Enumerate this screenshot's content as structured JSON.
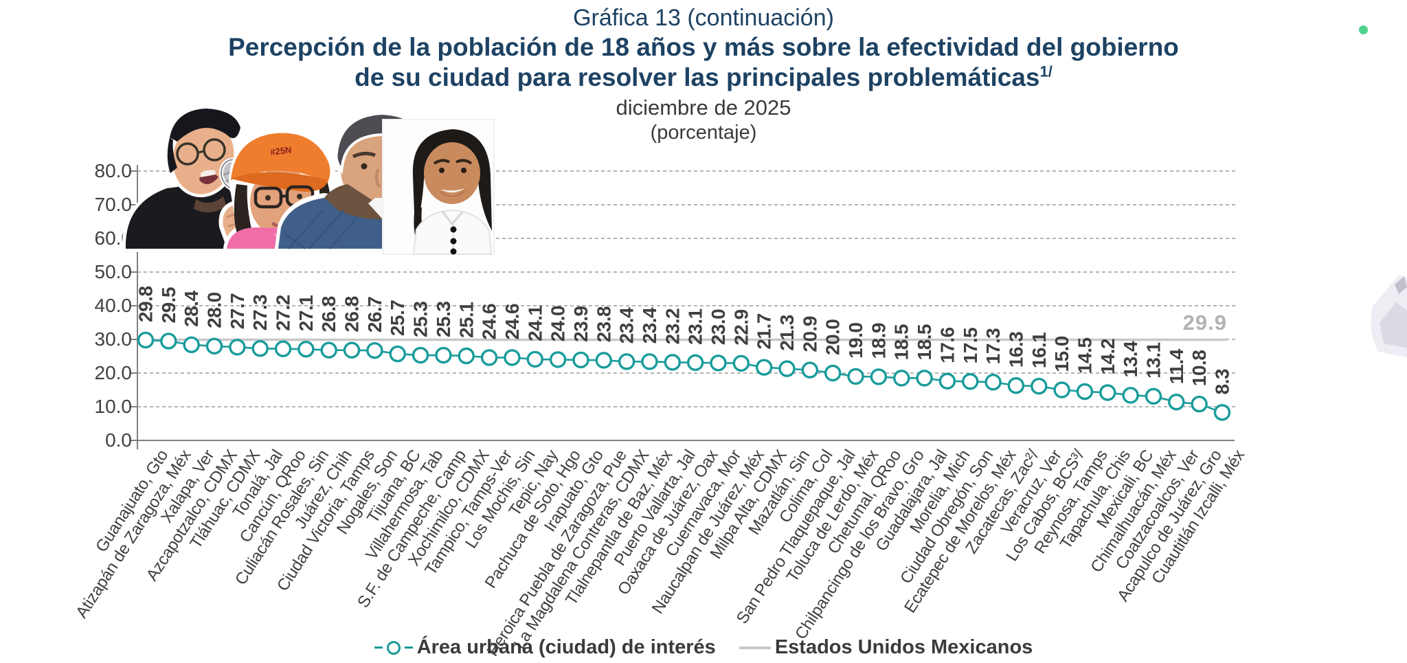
{
  "header": {
    "line1": "Gráfica 13 (continuación)",
    "line2": "Percepción de la población de 18 años y más sobre la efectividad del gobierno",
    "line3": "de su ciudad para resolver las principales problemáticas",
    "line3_superscript": "1/",
    "line4": "diciembre de 2025",
    "line5": "(porcentaje)"
  },
  "chart_data": {
    "type": "line",
    "title": "Percepción de la población de 18 años y más sobre la efectividad del gobierno de su ciudad para resolver las principales problemáticas, diciembre de 2025 (porcentaje)",
    "xlabel": "",
    "ylabel": "",
    "ylim": [
      0,
      80
    ],
    "yticks": [
      0,
      10,
      20,
      30,
      40,
      50,
      60,
      70,
      80
    ],
    "grid": "dashed horizontal",
    "legend_position": "bottom",
    "categories": [
      "Guanajuato, Gto",
      "Atizapán de Zaragoza, Méx",
      "Xalapa, Ver",
      "Azcapotzalco, CDMX",
      "Tláhuac, CDMX",
      "Tonalá, Jal",
      "Cancún, QRoo",
      "Culiacán Rosales, Sin",
      "Juárez, Chih",
      "Ciudad Victoria, Tamps",
      "Nogales, Son",
      "Tijuana, BC",
      "Villahermosa, Tab",
      "S.F. de Campeche, Camp",
      "Xochimilco, CDMX",
      "Tampico, Tamps-Ver",
      "Los Mochis, Sin",
      "Tepic, Nay",
      "Pachuca de Soto, Hgo",
      "Irapuato, Gto",
      "Heroica Puebla de Zaragoza, Pue",
      "La Magdalena Contreras, CDMX",
      "Tlalnepantla de Baz, Méx",
      "Puerto Vallarta, Jal",
      "Oaxaca de Juárez, Oax",
      "Cuernavaca, Mor",
      "Naucalpan de Juárez, Méx",
      "Milpa Alta, CDMX",
      "Mazatlán, Sin",
      "Colima, Col",
      "San Pedro Tlaquepaque, Jal",
      "Toluca de Lerdo, Méx",
      "Chetumal, QRoo",
      "Chilpancingo de los Bravo, Gro",
      "Guadalajara, Jal",
      "Morelia, Mich",
      "Ciudad Obregón, Son",
      "Ecatepec de Morelos, Méx",
      "Zacatecas, Zac²/",
      "Veracruz, Ver",
      "Los Cabos, BCS³/",
      "Reynosa, Tamps",
      "Tapachula, Chis",
      "Mexicali, BC",
      "Chimalhuacán, Méx",
      "Coatzacoalcos, Ver",
      "Acapulco de Juárez, Gro",
      "Cuautitlán Izcalli, Méx"
    ],
    "series": [
      {
        "name": "Área urbana (ciudad) de interés",
        "values": [
          29.8,
          29.5,
          28.4,
          28.0,
          27.7,
          27.3,
          27.2,
          27.1,
          26.8,
          26.8,
          26.7,
          25.7,
          25.3,
          25.3,
          25.1,
          24.6,
          24.6,
          24.1,
          24.0,
          23.9,
          23.8,
          23.4,
          23.4,
          23.2,
          23.1,
          23.0,
          22.9,
          21.7,
          21.3,
          20.9,
          20.0,
          19.0,
          18.9,
          18.5,
          18.5,
          17.6,
          17.5,
          17.3,
          16.3,
          16.1,
          15.0,
          14.5,
          14.2,
          13.4,
          13.1,
          11.4,
          10.8,
          8.3
        ]
      }
    ],
    "national_reference": {
      "name": "Estados Unidos Mexicanos",
      "value": 29.9,
      "label": "29.9"
    },
    "colors": {
      "series": "#199b9b",
      "national_line": "#c7c7c7",
      "national_label": "#b2b2b2",
      "title_navy": "#1d4263",
      "grid": "#9a9a9a"
    }
  },
  "legend": {
    "items": [
      {
        "label": "Área urbana (ciudad) de interés",
        "marker": "teal-open-circle-line"
      },
      {
        "label": "Estados Unidos Mexicanos",
        "marker": "gray-line"
      }
    ]
  },
  "overlay": {
    "cap_text": "#25N"
  }
}
